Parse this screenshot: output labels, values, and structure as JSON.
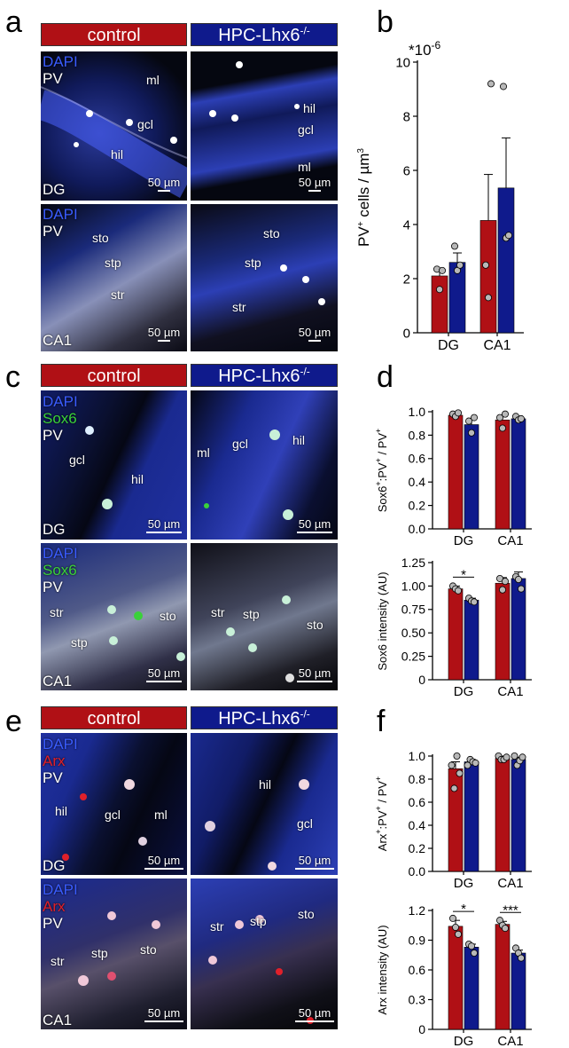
{
  "panel_letters": {
    "a": "a",
    "b": "b",
    "c": "c",
    "d": "d",
    "e": "e",
    "f": "f"
  },
  "headers": {
    "control": "control",
    "ko_base": "HPC-Lhx6",
    "ko_sup": "-/-"
  },
  "colors": {
    "control": "#b01015",
    "ko": "#0f1a8c",
    "dapi": "#3a5cff",
    "sox6": "#3ad13a",
    "arx": "#e0202a"
  },
  "micro": {
    "a": {
      "top_side": [
        "DAPI",
        "PV"
      ],
      "bottom_side": [
        "DAPI",
        "PV"
      ],
      "top_tag": "DG",
      "bottom_tag": "CA1",
      "scale": "50 µm",
      "tl_labels": [
        "ml",
        "gcl",
        "hil"
      ],
      "tr_labels": [
        "hil",
        "gcl",
        "ml"
      ],
      "bl_labels": [
        "sto",
        "stp",
        "str"
      ],
      "br_labels": [
        "sto",
        "stp",
        "str"
      ]
    },
    "c": {
      "top_side": [
        "DAPI",
        "Sox6",
        "PV"
      ],
      "bottom_side": [
        "DAPI",
        "Sox6",
        "PV"
      ],
      "top_tag": "DG",
      "bottom_tag": "CA1",
      "scale": "50 µm",
      "tl_labels": [
        "gcl",
        "hil"
      ],
      "tr_labels": [
        "ml",
        "gcl",
        "hil"
      ],
      "bl_labels": [
        "str",
        "stp",
        "sto"
      ],
      "br_labels": [
        "str",
        "stp",
        "sto"
      ]
    },
    "e": {
      "top_side": [
        "DAPI",
        "Arx",
        "PV"
      ],
      "bottom_side": [
        "DAPI",
        "Arx",
        "PV"
      ],
      "top_tag": "DG",
      "bottom_tag": "CA1",
      "scale": "50 µm",
      "tl_labels": [
        "hil",
        "gcl",
        "ml"
      ],
      "tr_labels": [
        "hil",
        "gcl"
      ],
      "bl_labels": [
        "str",
        "stp",
        "sto"
      ],
      "br_labels": [
        "str",
        "stp",
        "sto"
      ]
    }
  },
  "chart_data": [
    {
      "id": "b",
      "type": "bar",
      "categories": [
        "DG",
        "CA1"
      ],
      "series": [
        {
          "values": [
            2.1,
            4.15
          ],
          "errors": [
            0.25,
            1.7
          ],
          "points": [
            [
              2.35,
              1.6,
              2.3
            ],
            [
              2.5,
              1.3,
              9.2
            ]
          ]
        },
        {
          "values": [
            2.6,
            5.35
          ],
          "errors": [
            0.35,
            1.85
          ],
          "points": [
            [
              3.2,
              2.3,
              2.5
            ],
            [
              9.1,
              3.5,
              3.6
            ]
          ]
        }
      ],
      "exponent_label": "*10-6",
      "ylabel_parts": [
        "PV",
        "+",
        " cells / µm",
        "3"
      ],
      "ylim": [
        0,
        10
      ],
      "yticks": [
        0,
        2,
        4,
        6,
        8,
        10
      ]
    },
    {
      "id": "d1",
      "type": "bar",
      "categories": [
        "DG",
        "CA1"
      ],
      "series": [
        {
          "values": [
            0.97,
            0.93
          ],
          "errors": [
            0.02,
            0.04
          ],
          "points": [
            [
              0.98,
              0.96,
              0.99
            ],
            [
              0.95,
              0.86,
              0.98
            ]
          ]
        },
        {
          "values": [
            0.89,
            0.94
          ],
          "errors": [
            0.05,
            0.02
          ],
          "points": [
            [
              0.92,
              0.82,
              0.95
            ],
            [
              0.96,
              0.93,
              0.94
            ]
          ]
        }
      ],
      "ylabel_parts": [
        "Sox6",
        "+",
        ":PV",
        "+",
        " / PV",
        "+"
      ],
      "ylim": [
        0,
        1.0
      ],
      "yticks": [
        "0.0",
        "0.2",
        "0.4",
        "0.6",
        "0.8",
        "1.0"
      ]
    },
    {
      "id": "d2",
      "type": "bar",
      "categories": [
        "DG",
        "CA1"
      ],
      "series": [
        {
          "values": [
            0.97,
            1.03
          ],
          "errors": [
            0.03,
            0.06
          ],
          "points": [
            [
              1.0,
              0.97,
              0.95
            ],
            [
              1.08,
              0.96,
              1.05
            ]
          ]
        },
        {
          "values": [
            0.85,
            1.08
          ],
          "errors": [
            0.02,
            0.07
          ],
          "points": [
            [
              0.87,
              0.84,
              0.83
            ],
            [
              1.1,
              1.07,
              0.97
            ]
          ]
        }
      ],
      "ylabel_parts": [
        "Sox6 intensity (AU)"
      ],
      "ylim": [
        0,
        1.25
      ],
      "yticks": [
        "0",
        "0.25",
        "0.50",
        "0.75",
        "1.00",
        "1.25"
      ],
      "significance": [
        {
          "category": "DG",
          "label": "*"
        }
      ]
    },
    {
      "id": "f1",
      "type": "bar",
      "categories": [
        "DG",
        "CA1"
      ],
      "series": [
        {
          "values": [
            0.89,
            0.98
          ],
          "errors": [
            0.06,
            0.02
          ],
          "points": [
            [
              0.92,
              0.72,
              1.0,
              0.85
            ],
            [
              1.0,
              0.97,
              0.97,
              0.99
            ]
          ]
        },
        {
          "values": [
            0.95,
            0.97
          ],
          "errors": [
            0.02,
            0.02
          ],
          "points": [
            [
              0.92,
              0.97,
              0.95,
              0.94
            ],
            [
              1.0,
              0.92,
              0.96,
              0.99
            ]
          ]
        }
      ],
      "ylabel_parts": [
        "Arx",
        "+",
        ":PV",
        "+",
        " / PV",
        "+"
      ],
      "ylim": [
        0,
        1.0
      ],
      "yticks": [
        "0.0",
        "0.2",
        "0.4",
        "0.6",
        "0.8",
        "1.0"
      ]
    },
    {
      "id": "f2",
      "type": "bar",
      "categories": [
        "DG",
        "CA1"
      ],
      "series": [
        {
          "values": [
            1.04,
            1.06
          ],
          "errors": [
            0.06,
            0.03
          ],
          "points": [
            [
              1.12,
              1.03,
              0.96
            ],
            [
              1.1,
              1.05,
              1.02
            ]
          ]
        },
        {
          "values": [
            0.83,
            0.77
          ],
          "errors": [
            0.03,
            0.03
          ],
          "points": [
            [
              0.86,
              0.84,
              0.77
            ],
            [
              0.82,
              0.77,
              0.72
            ]
          ]
        }
      ],
      "ylabel_parts": [
        "Arx intensity (AU)"
      ],
      "ylim": [
        0,
        1.2
      ],
      "yticks": [
        "0",
        "0.3",
        "0.6",
        "0.9",
        "1.2"
      ],
      "significance": [
        {
          "category": "DG",
          "label": "*"
        },
        {
          "category": "CA1",
          "label": "***"
        }
      ]
    }
  ]
}
